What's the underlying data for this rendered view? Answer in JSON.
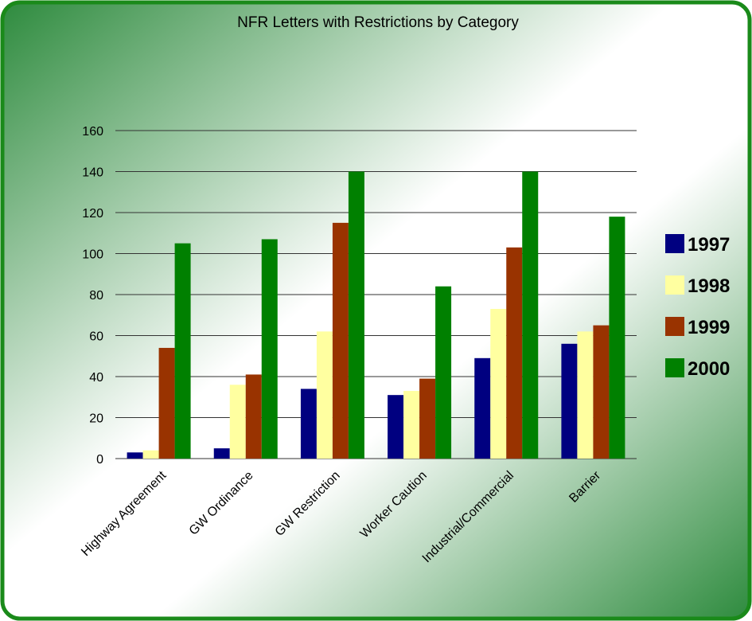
{
  "chart_data": {
    "type": "bar",
    "title": "NFR Letters with Restrictions by Category",
    "categories": [
      "Highway Agreement",
      "GW Ordinance",
      "GW Restriction",
      "Worker Caution",
      "Industrial/Commercial",
      "Barrier"
    ],
    "series": [
      {
        "name": "1997",
        "color": "#000080",
        "values": [
          3,
          5,
          34,
          31,
          49,
          56
        ]
      },
      {
        "name": "1998",
        "color": "#ffffa0",
        "values": [
          4,
          36,
          62,
          33,
          73,
          62
        ]
      },
      {
        "name": "1999",
        "color": "#993300",
        "values": [
          54,
          41,
          115,
          39,
          103,
          65
        ]
      },
      {
        "name": "2000",
        "color": "#008000",
        "values": [
          105,
          107,
          140,
          84,
          140,
          118
        ]
      }
    ],
    "ylim": [
      0,
      160
    ],
    "yticks": [
      0,
      20,
      40,
      60,
      80,
      100,
      120,
      140,
      160
    ],
    "grid": true,
    "legend": "right"
  }
}
